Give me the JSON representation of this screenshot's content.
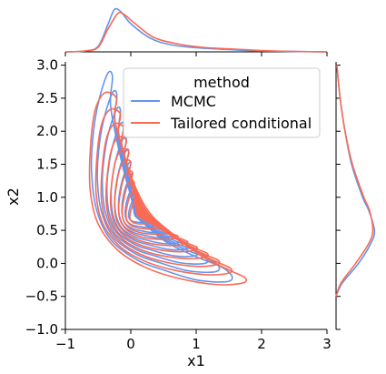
{
  "chart_data": {
    "type": "kde-jointplot",
    "xlabel": "x1",
    "ylabel": "x2",
    "xlim": [
      -1,
      3
    ],
    "ylim": [
      -1,
      3.05
    ],
    "x_ticks": [
      "−1",
      "0",
      "1",
      "2",
      "3"
    ],
    "y_ticks": [
      "−1.0",
      "−0.5",
      "0.0",
      "0.5",
      "1.0",
      "1.5",
      "2.0",
      "2.5",
      "3.0"
    ],
    "x_tick_values": [
      -1,
      0,
      1,
      2,
      3
    ],
    "y_tick_values": [
      -1.0,
      -0.5,
      0.0,
      0.5,
      1.0,
      1.5,
      2.0,
      2.5,
      3.0
    ],
    "legend": {
      "title": "method",
      "placement": "upper-right",
      "entries": [
        {
          "label": "MCMC",
          "color": "#6495ED"
        },
        {
          "label": "Tailored conditional",
          "color": "#FA6A54"
        }
      ]
    },
    "series": [
      {
        "name": "MCMC",
        "color": "#6495ED",
        "outer_contour": [
          [
            -0.35,
            2.88
          ],
          [
            -0.28,
            2.82
          ],
          [
            -0.31,
            2.4
          ],
          [
            -0.2,
            1.8
          ],
          [
            -0.05,
            1.2
          ],
          [
            0.15,
            0.7
          ],
          [
            0.5,
            0.35
          ],
          [
            1.0,
            0.1
          ],
          [
            1.38,
            -0.05
          ],
          [
            1.55,
            -0.2
          ],
          [
            1.45,
            -0.28
          ],
          [
            1.0,
            -0.25
          ],
          [
            0.5,
            -0.1
          ],
          [
            0.1,
            0.05
          ],
          [
            -0.3,
            0.35
          ],
          [
            -0.52,
            0.8
          ],
          [
            -0.6,
            1.4
          ],
          [
            -0.57,
            2.0
          ],
          [
            -0.48,
            2.5
          ]
        ],
        "marginal_x": [
          [
            -1.0,
            0.0
          ],
          [
            -0.7,
            0.02
          ],
          [
            -0.5,
            0.12
          ],
          [
            -0.35,
            0.6
          ],
          [
            -0.25,
            0.93
          ],
          [
            -0.15,
            0.88
          ],
          [
            0.0,
            0.62
          ],
          [
            0.3,
            0.3
          ],
          [
            0.6,
            0.16
          ],
          [
            1.0,
            0.09
          ],
          [
            1.5,
            0.05
          ],
          [
            2.0,
            0.02
          ],
          [
            3.0,
            0.0
          ]
        ],
        "marginal_y": [
          [
            -0.5,
            0.0
          ],
          [
            -0.3,
            0.15
          ],
          [
            0.0,
            0.55
          ],
          [
            0.3,
            0.85
          ],
          [
            0.5,
            0.94
          ],
          [
            0.8,
            0.8
          ],
          [
            1.0,
            0.65
          ],
          [
            1.5,
            0.38
          ],
          [
            2.0,
            0.22
          ],
          [
            2.5,
            0.1
          ],
          [
            3.0,
            0.02
          ]
        ]
      },
      {
        "name": "Tailored conditional",
        "color": "#FA6A54",
        "outer_contour": [
          [
            -0.4,
            2.58
          ],
          [
            -0.22,
            2.5
          ],
          [
            -0.25,
            2.2
          ],
          [
            -0.12,
            1.7
          ],
          [
            0.05,
            1.2
          ],
          [
            0.3,
            0.75
          ],
          [
            0.7,
            0.4
          ],
          [
            1.1,
            0.1
          ],
          [
            1.5,
            -0.1
          ],
          [
            1.75,
            -0.22
          ],
          [
            1.7,
            -0.3
          ],
          [
            1.3,
            -0.32
          ],
          [
            0.7,
            -0.22
          ],
          [
            0.2,
            -0.05
          ],
          [
            -0.2,
            0.2
          ],
          [
            -0.5,
            0.6
          ],
          [
            -0.62,
            1.1
          ],
          [
            -0.62,
            1.7
          ],
          [
            -0.55,
            2.3
          ]
        ],
        "marginal_x": [
          [
            -1.0,
            0.0
          ],
          [
            -0.7,
            0.02
          ],
          [
            -0.5,
            0.1
          ],
          [
            -0.35,
            0.5
          ],
          [
            -0.2,
            0.84
          ],
          [
            -0.1,
            0.82
          ],
          [
            0.05,
            0.64
          ],
          [
            0.35,
            0.32
          ],
          [
            0.7,
            0.18
          ],
          [
            1.1,
            0.1
          ],
          [
            1.6,
            0.06
          ],
          [
            2.2,
            0.02
          ],
          [
            3.0,
            0.0
          ]
        ],
        "marginal_y": [
          [
            -0.5,
            0.0
          ],
          [
            -0.3,
            0.12
          ],
          [
            0.0,
            0.48
          ],
          [
            0.3,
            0.8
          ],
          [
            0.5,
            0.9
          ],
          [
            0.8,
            0.82
          ],
          [
            1.0,
            0.68
          ],
          [
            1.5,
            0.4
          ],
          [
            2.0,
            0.22
          ],
          [
            2.5,
            0.1
          ],
          [
            3.0,
            0.02
          ]
        ]
      }
    ]
  }
}
